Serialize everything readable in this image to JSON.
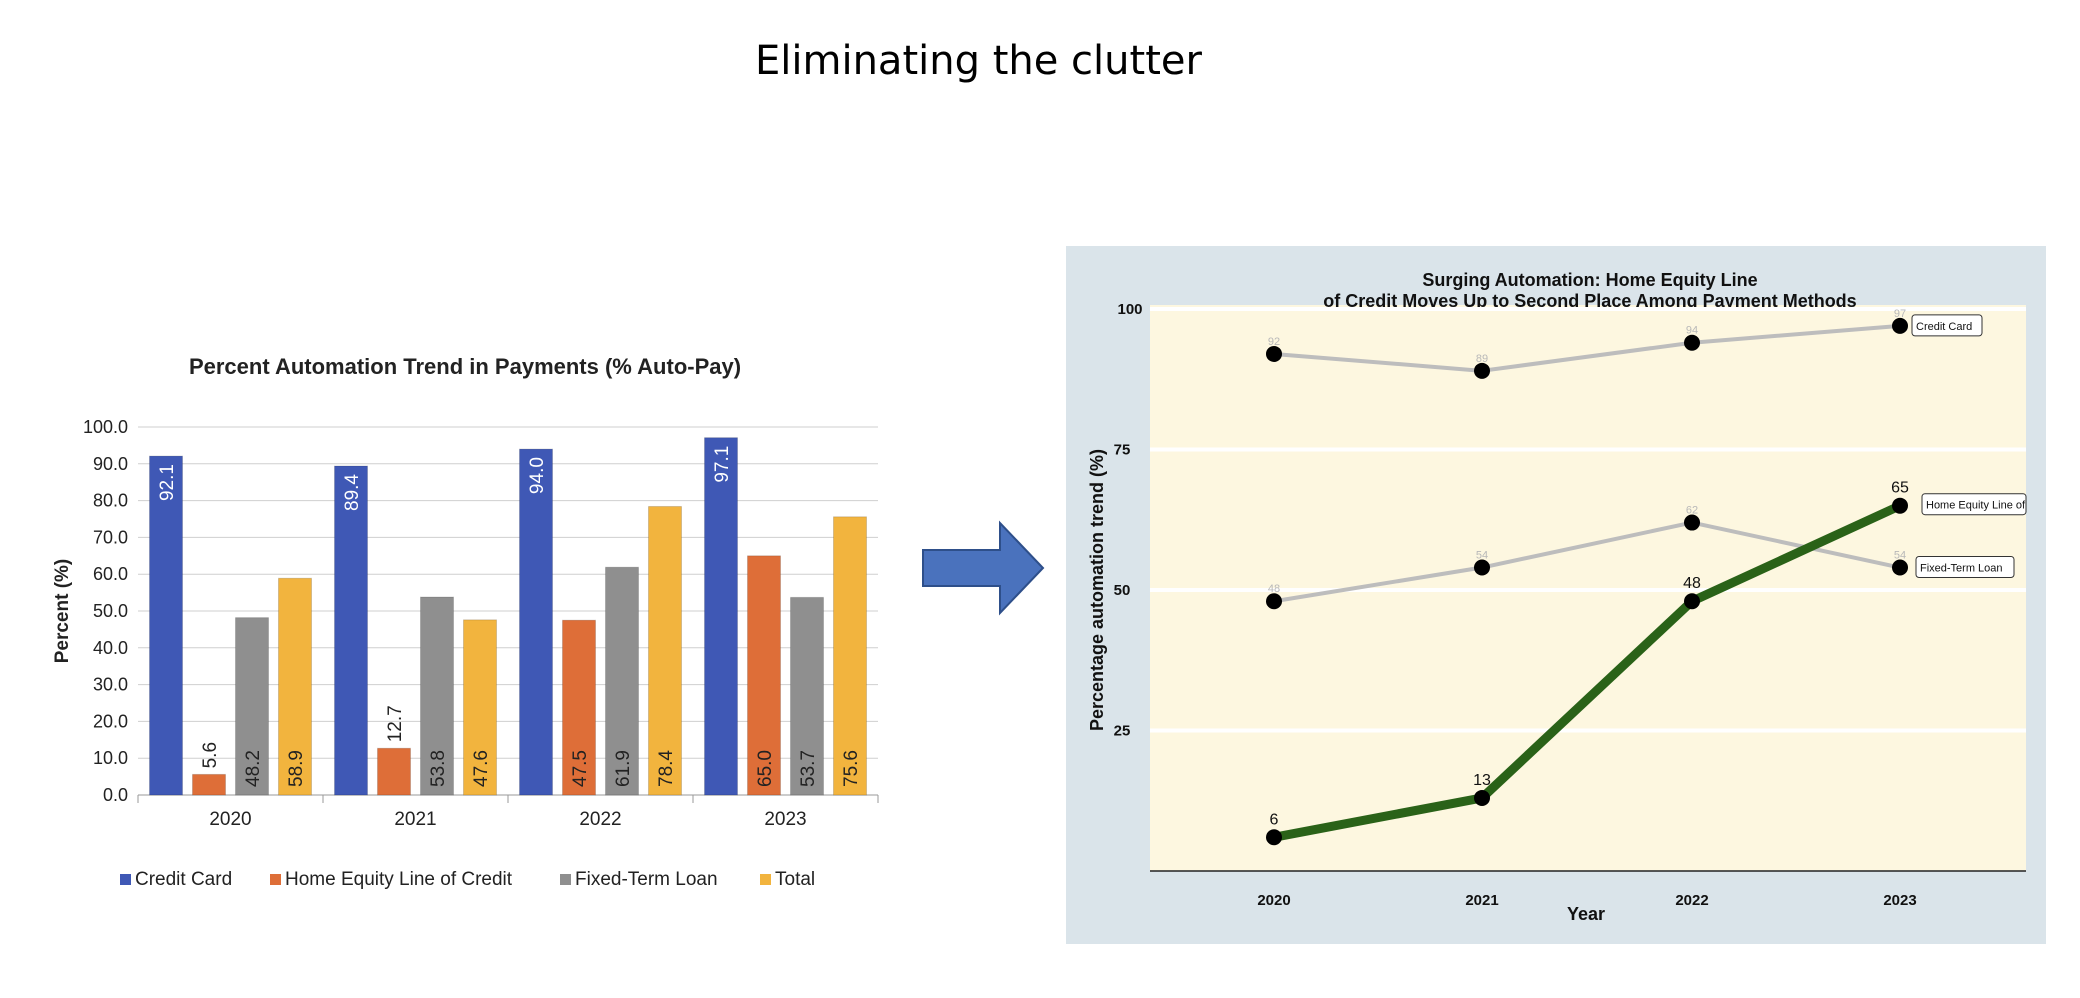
{
  "slide": {
    "title": "Eliminating the clutter"
  },
  "chart_data": [
    {
      "type": "bar",
      "title": "Percent Automation Trend in Payments (% Auto-Pay)",
      "xlabel": "",
      "ylabel": "Percent (%)",
      "ylim": [
        0,
        100
      ],
      "yticks": [
        "0.0",
        "10.0",
        "20.0",
        "30.0",
        "40.0",
        "50.0",
        "60.0",
        "70.0",
        "80.0",
        "90.0",
        "100.0"
      ],
      "categories": [
        "2020",
        "2021",
        "2022",
        "2023"
      ],
      "series": [
        {
          "name": "Credit Card",
          "color": "#3f58b5",
          "values": [
            92.1,
            89.4,
            94.0,
            97.1
          ],
          "labels": [
            "92.1",
            "89.4",
            "94.0",
            "97.1"
          ]
        },
        {
          "name": "Home Equity Line of Credit",
          "color": "#de6e38",
          "values": [
            5.6,
            12.7,
            47.5,
            65.0
          ],
          "labels": [
            "5.6",
            "12.7",
            "47.5",
            "65.0"
          ]
        },
        {
          "name": "Fixed-Term Loan",
          "color": "#8f8f8f",
          "values": [
            48.2,
            53.8,
            61.9,
            53.7
          ],
          "labels": [
            "48.2",
            "53.8",
            "61.9",
            "53.7"
          ]
        },
        {
          "name": "Total",
          "color": "#f2b43e",
          "values": [
            58.9,
            47.6,
            78.4,
            75.6
          ],
          "labels": [
            "58.9",
            "47.6",
            "78.4",
            "75.6"
          ]
        }
      ],
      "grid": true,
      "legend": "bottom"
    },
    {
      "type": "line",
      "title": "Surging Automation: Home Equity Line of Credit Moves Up to Second Place Among Payment Methods",
      "title_lines": [
        "Surging Automation: Home Equity Line",
        "of Credit Moves Up to Second Place Among Payment Methods"
      ],
      "xlabel": "Year",
      "ylabel": "Percentage automation trend (%)",
      "x": [
        "2020",
        "2021",
        "2022",
        "2023"
      ],
      "ylim": [
        0,
        100
      ],
      "yticks": [
        "25",
        "50",
        "75",
        "100"
      ],
      "series": [
        {
          "name": "Credit Card",
          "color": "#bdbdbd",
          "values": [
            92,
            89,
            94,
            97
          ],
          "labels": [
            "92",
            "89",
            "94",
            "97"
          ]
        },
        {
          "name": "Fixed-Term Loan",
          "color": "#bdbdbd",
          "values": [
            48,
            54,
            62,
            54
          ],
          "labels": [
            "48",
            "54",
            "62",
            "54"
          ]
        },
        {
          "name": "Home Equity Line of Credit",
          "color": "#2a6218",
          "values": [
            6,
            13,
            48,
            65
          ],
          "labels": [
            "6",
            "13",
            "48",
            "65"
          ]
        }
      ],
      "end_labels": [
        "Credit Card",
        "Home Equity Line of",
        "Fixed-Term Loan"
      ],
      "background": "#dae4ea",
      "plot_background": "#fdf7e0",
      "grid": true,
      "legend": "none"
    }
  ],
  "arrow": {
    "icon": "right-arrow-icon",
    "color": "#4a72bd"
  }
}
